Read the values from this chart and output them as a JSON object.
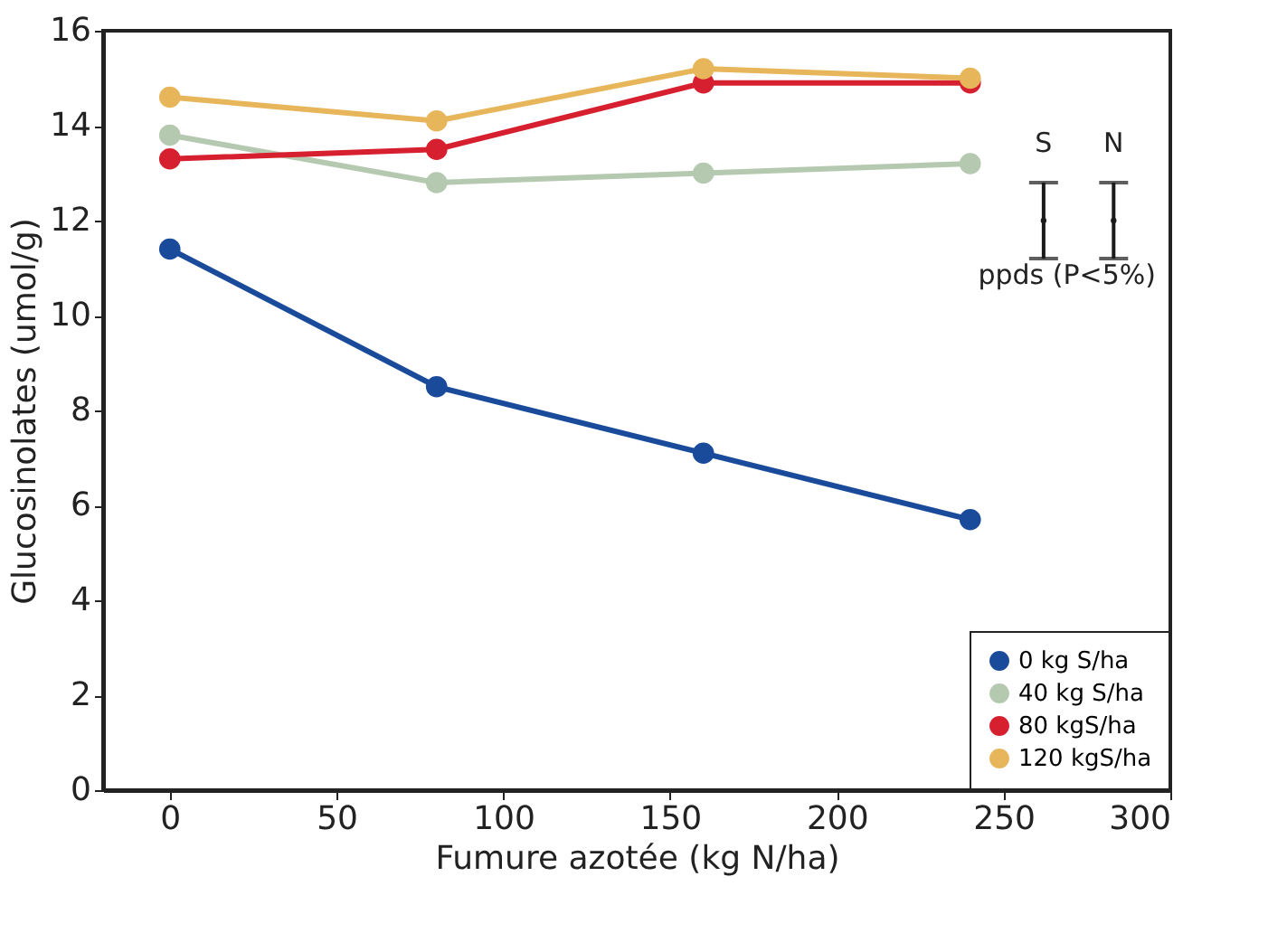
{
  "chart_data": {
    "type": "line",
    "xlabel": "Fumure azotée (kg N/ha)",
    "ylabel": "Glucosinolates (umol/g)",
    "x": [
      0,
      80,
      160,
      240
    ],
    "series": [
      {
        "name": "0 kg S/ha",
        "color": "#1a4b9b",
        "values": [
          11.4,
          8.5,
          7.1,
          5.7
        ]
      },
      {
        "name": "40 kg S/ha",
        "color": "#b5c9b0",
        "values": [
          13.8,
          12.8,
          13.0,
          13.2
        ]
      },
      {
        "name": "80 kgS/ha",
        "color": "#d7202f",
        "values": [
          13.3,
          13.5,
          14.9,
          14.9
        ]
      },
      {
        "name": "120 kgS/ha",
        "color": "#e8b65a",
        "values": [
          14.6,
          14.1,
          15.2,
          15.0
        ]
      },
      {
        "name": "S",
        "type": "scatter",
        "color": "#1a1a1a",
        "x": [
          262
        ],
        "values": [
          12.0
        ],
        "errors": [
          0.8
        ]
      },
      {
        "name": "N",
        "type": "scatter",
        "color": "#1a1a1a",
        "x": [
          283
        ],
        "values": [
          12.0
        ],
        "errors": [
          0.8
        ]
      }
    ],
    "annotations": [
      "ppds (P<5%)"
    ],
    "xlim": [
      -20,
      300
    ],
    "xticks": [
      0,
      50,
      100,
      150,
      200,
      250,
      300
    ],
    "ylim": [
      0,
      16
    ],
    "yticks": [
      0,
      2,
      4,
      6,
      8,
      10,
      12,
      14,
      16
    ],
    "grid": false,
    "legend": "bottom right",
    "marker": "circle"
  }
}
